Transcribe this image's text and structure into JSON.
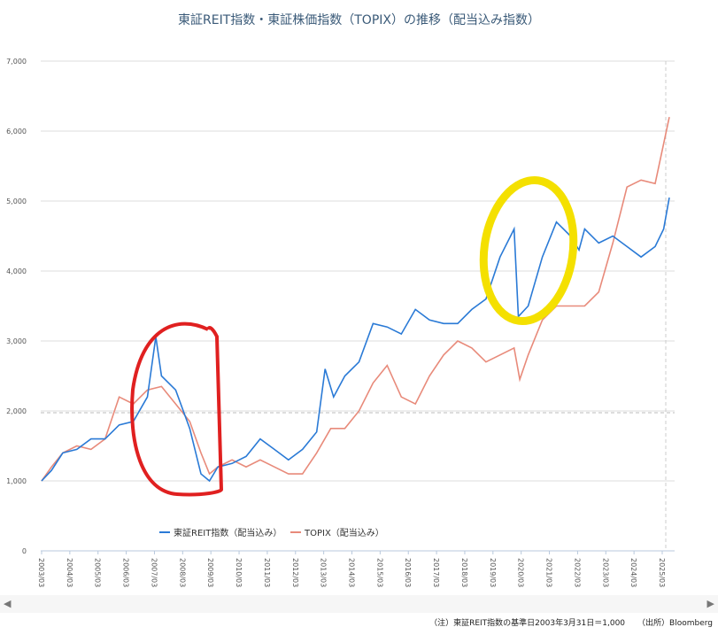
{
  "chart_data": {
    "type": "line",
    "title": "東証REIT指数・東証株価指数（TOPIX）の推移（配当込み指数）",
    "xlabel": "",
    "ylabel": "",
    "ylim": [
      0,
      7000
    ],
    "yticks": [
      "0",
      "1,000",
      "2,000",
      "3,000",
      "4,000",
      "5,000",
      "6,000",
      "7,000"
    ],
    "xticks": [
      "2003/03",
      "2004/03",
      "2005/03",
      "2006/03",
      "2007/03",
      "2008/03",
      "2009/03",
      "2010/03",
      "2011/03",
      "2012/03",
      "2013/03",
      "2014/03",
      "2015/03",
      "2016/03",
      "2017/03",
      "2018/03",
      "2019/03",
      "2020/03",
      "2021/03",
      "2022/03",
      "2023/03",
      "2024/03",
      "2025/03"
    ],
    "legend_position": "bottom-center",
    "series": [
      {
        "name": "東証REIT指数（配当込み）",
        "color": "#2a7ad6",
        "x": [
          2003.25,
          2003.6,
          2004,
          2004.5,
          2005,
          2005.5,
          2006,
          2006.5,
          2007,
          2007.3,
          2007.5,
          2008,
          2008.5,
          2008.9,
          2009.2,
          2009.5,
          2010,
          2010.5,
          2011,
          2011.5,
          2012,
          2012.5,
          2013,
          2013.3,
          2013.6,
          2014,
          2014.5,
          2015,
          2015.5,
          2016,
          2016.5,
          2017,
          2017.5,
          2018,
          2018.5,
          2019,
          2019.5,
          2020,
          2020.15,
          2020.5,
          2021,
          2021.5,
          2022,
          2022.3,
          2022.5,
          2023,
          2023.5,
          2024,
          2024.5,
          2025,
          2025.3,
          2025.5
        ],
        "values": [
          1000,
          1150,
          1400,
          1450,
          1600,
          1600,
          1800,
          1850,
          2200,
          3060,
          2500,
          2300,
          1750,
          1100,
          1000,
          1200,
          1250,
          1350,
          1600,
          1450,
          1300,
          1450,
          1700,
          2600,
          2200,
          2500,
          2700,
          3250,
          3200,
          3100,
          3450,
          3300,
          3250,
          3250,
          3450,
          3600,
          4200,
          4600,
          3350,
          3500,
          4200,
          4700,
          4500,
          4300,
          4600,
          4400,
          4500,
          4350,
          4200,
          4350,
          4600,
          5050
        ]
      },
      {
        "name": "TOPIX（配当込み）",
        "color": "#e88a7a",
        "x": [
          2003.25,
          2003.6,
          2004,
          2004.5,
          2005,
          2005.5,
          2006,
          2006.5,
          2007,
          2007.5,
          2008,
          2008.5,
          2008.9,
          2009.2,
          2009.5,
          2010,
          2010.5,
          2011,
          2011.5,
          2012,
          2012.5,
          2013,
          2013.5,
          2014,
          2014.5,
          2015,
          2015.5,
          2016,
          2016.5,
          2017,
          2017.5,
          2018,
          2018.5,
          2019,
          2019.5,
          2020,
          2020.2,
          2020.5,
          2021,
          2021.5,
          2022,
          2022.5,
          2023,
          2023.5,
          2024,
          2024.5,
          2025,
          2025.5
        ],
        "values": [
          1000,
          1200,
          1400,
          1500,
          1450,
          1600,
          2200,
          2100,
          2300,
          2350,
          2100,
          1850,
          1400,
          1100,
          1200,
          1300,
          1200,
          1300,
          1200,
          1100,
          1100,
          1400,
          1750,
          1750,
          2000,
          2400,
          2650,
          2200,
          2100,
          2500,
          2800,
          3000,
          2900,
          2700,
          2800,
          2900,
          2450,
          2800,
          3300,
          3500,
          3500,
          3500,
          3700,
          4400,
          5200,
          5300,
          5250,
          6200
        ]
      }
    ]
  },
  "footer": {
    "note": "（注）東証REIT指数の基準日2003年3月31日＝1,000",
    "source": "（出所）Bloomberg"
  },
  "scrollbar": {
    "left_arrow": "◀",
    "right_arrow": "▶"
  }
}
